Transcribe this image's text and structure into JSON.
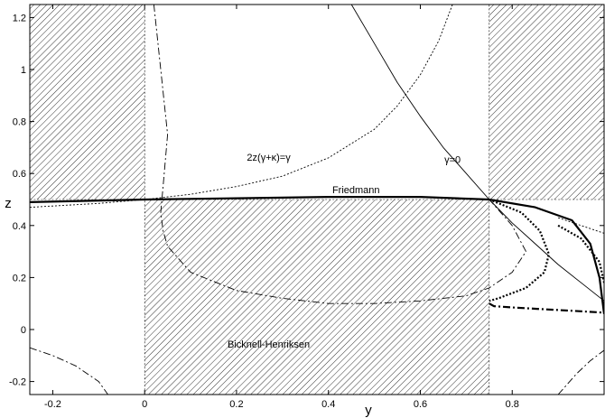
{
  "chart_data": {
    "type": "line",
    "title": "",
    "xlabel": "y",
    "ylabel": "z",
    "xlim": [
      -0.25,
      1.0
    ],
    "ylim": [
      -0.25,
      1.25
    ],
    "xticks": [
      -0.2,
      0,
      0.2,
      0.4,
      0.6,
      0.8
    ],
    "xtick_labels": [
      "-0.2",
      "0",
      "0.2",
      "0.4",
      "0.6",
      "0.8"
    ],
    "yticks": [
      -0.2,
      0,
      0.2,
      0.4,
      0.6,
      0.8,
      1.0,
      1.2
    ],
    "ytick_labels": [
      "-0.2",
      "0",
      "0.2",
      "0.4",
      "0.6",
      "0.8",
      "1",
      "1.2"
    ],
    "grid": false,
    "legend": "none",
    "hatched_regions": [
      {
        "x": [
          -0.25,
          0
        ],
        "y": [
          0.5,
          1.25
        ]
      },
      {
        "x": [
          0,
          0.75
        ],
        "y": [
          -0.25,
          0.5
        ]
      },
      {
        "x": [
          0.75,
          1.0
        ],
        "y": [
          0.5,
          1.25
        ]
      }
    ],
    "series": [
      {
        "style": "thick-solid",
        "x": [
          -0.25,
          0,
          0.2,
          0.4,
          0.6,
          0.75,
          0.85,
          0.93,
          0.97,
          0.99,
          1.0
        ],
        "y": [
          0.49,
          0.5,
          0.505,
          0.51,
          0.51,
          0.5,
          0.47,
          0.42,
          0.33,
          0.2,
          0.06
        ]
      },
      {
        "style": "thick-dotted",
        "x": [
          0.75,
          0.82,
          0.86,
          0.88,
          0.87,
          0.83,
          0.77,
          0.75
        ],
        "y": [
          0.5,
          0.45,
          0.38,
          0.29,
          0.22,
          0.16,
          0.12,
          0.11
        ]
      },
      {
        "style": "thick-dotted",
        "x": [
          0.9,
          0.95,
          0.99,
          1.0
        ],
        "y": [
          0.4,
          0.35,
          0.26,
          0.18
        ]
      },
      {
        "style": "thick-dashdot",
        "x": [
          0.75,
          0.76,
          0.8,
          0.85,
          0.9,
          0.95,
          1.0
        ],
        "y": [
          0.1,
          0.09,
          0.085,
          0.08,
          0.075,
          0.07,
          0.065
        ]
      },
      {
        "style": "thin-solid",
        "x": [
          0.45,
          0.5,
          0.55,
          0.6,
          0.65,
          0.7,
          0.75,
          0.8,
          0.85,
          0.9,
          0.95,
          1.0
        ],
        "y": [
          1.25,
          1.1,
          0.95,
          0.82,
          0.7,
          0.6,
          0.5,
          0.41,
          0.33,
          0.25,
          0.18,
          0.11
        ]
      },
      {
        "style": "thin-dotted",
        "x": [
          -0.25,
          -0.1,
          0,
          0.1,
          0.2,
          0.3,
          0.4,
          0.5,
          0.55,
          0.6,
          0.64,
          0.67
        ],
        "y": [
          0.47,
          0.485,
          0.5,
          0.52,
          0.55,
          0.59,
          0.66,
          0.77,
          0.86,
          0.98,
          1.11,
          1.25
        ]
      },
      {
        "style": "thin-dotted",
        "x": [
          0.9,
          0.95,
          1.0
        ],
        "y": [
          0.43,
          0.4,
          0.37
        ]
      },
      {
        "style": "thin-dashdot",
        "x": [
          0.02,
          0.035,
          0.05,
          0.04,
          0.035,
          0.04,
          0.05,
          0.1,
          0.2,
          0.3,
          0.4,
          0.5,
          0.6,
          0.7,
          0.75,
          0.8,
          0.83,
          0.8,
          0.75
        ],
        "y": [
          1.25,
          1.0,
          0.75,
          0.55,
          0.45,
          0.38,
          0.32,
          0.22,
          0.15,
          0.12,
          0.1,
          0.1,
          0.11,
          0.13,
          0.16,
          0.22,
          0.3,
          0.4,
          0.5
        ]
      },
      {
        "style": "thin-dashdot",
        "x": [
          -0.25,
          -0.2,
          -0.15,
          -0.1,
          -0.08
        ],
        "y": [
          -0.07,
          -0.1,
          -0.14,
          -0.2,
          -0.25
        ]
      },
      {
        "style": "thin-dashdot",
        "x": [
          0.9,
          0.94,
          0.97,
          1.0
        ],
        "y": [
          -0.25,
          -0.17,
          -0.12,
          -0.08
        ]
      }
    ],
    "annotations": [
      {
        "text": "2z(γ+κ)=γ",
        "x": 0.27,
        "y": 0.65
      },
      {
        "text": "γ=0",
        "x": 0.67,
        "y": 0.64
      },
      {
        "text": "Friedmann",
        "x": 0.46,
        "y": 0.525
      },
      {
        "text": "Bicknell-Henriksen",
        "x": 0.27,
        "y": -0.07
      }
    ]
  }
}
